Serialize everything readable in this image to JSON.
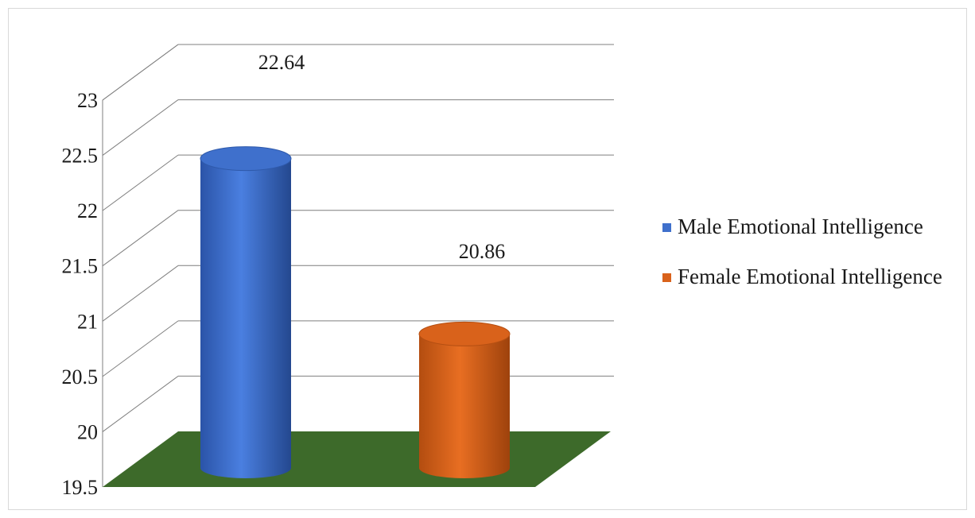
{
  "chart_data": {
    "type": "bar",
    "style": "3d-cylinder",
    "categories": [
      "Male Emotional Intelligence",
      "Female Emotional Intelligence"
    ],
    "values": [
      22.64,
      20.86
    ],
    "data_labels": [
      "22.64",
      "20.86"
    ],
    "colors": [
      "#3f70cc",
      "#d9621b"
    ],
    "floor_color": "#3d6a2a",
    "ylim": [
      19.5,
      23
    ],
    "yticks": [
      "19.5",
      "20",
      "20.5",
      "21",
      "21.5",
      "22",
      "22.5",
      "23"
    ],
    "grid": true,
    "legend": {
      "position": "right",
      "items": [
        {
          "label": "Male Emotional Intelligence",
          "color": "#3f70cc"
        },
        {
          "label": "Female Emotional Intelligence",
          "color": "#d9621b"
        }
      ]
    },
    "title": "",
    "xlabel": "",
    "ylabel": ""
  }
}
